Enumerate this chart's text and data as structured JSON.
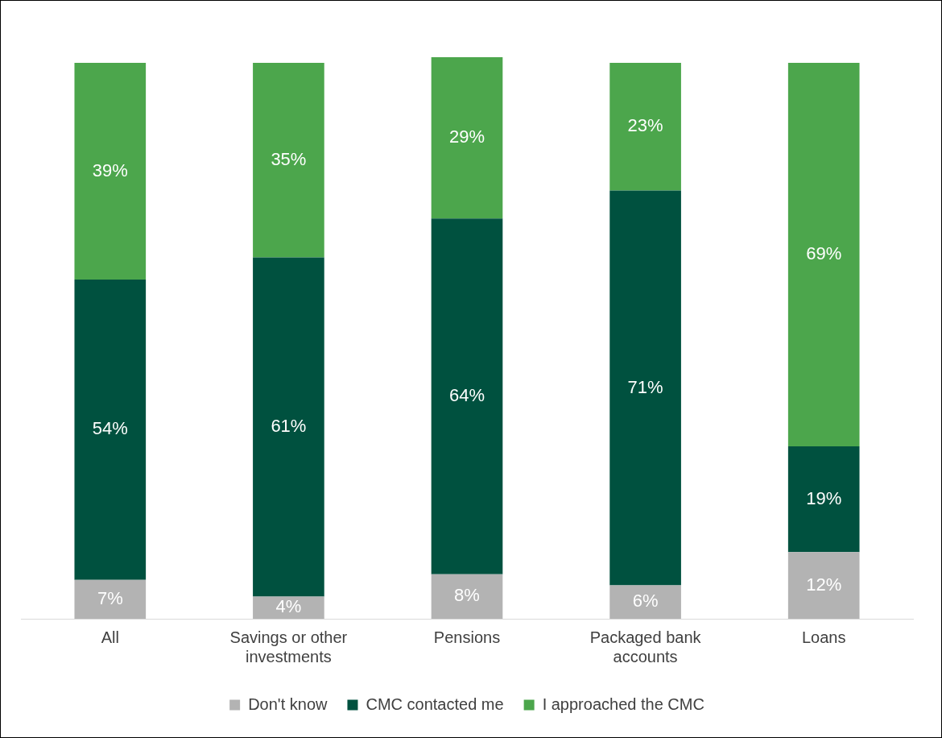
{
  "chart_data": {
    "type": "bar",
    "stacked": true,
    "legend": "bottom",
    "categories": [
      "All",
      "Savings or other investments",
      "Pensions",
      "Packaged bank accounts",
      "Loans"
    ],
    "series": [
      {
        "name": "Don't know",
        "color": "#b3b3b3",
        "values": [
          7,
          4,
          8,
          6,
          12
        ],
        "value_labels": [
          "7%",
          "4%",
          "8%",
          "6%",
          "12%"
        ]
      },
      {
        "name": "CMC contacted me",
        "color": "#00513f",
        "values": [
          54,
          61,
          64,
          71,
          19
        ],
        "value_labels": [
          "54%",
          "61%",
          "64%",
          "71%",
          "19%"
        ]
      },
      {
        "name": "I approached the CMC",
        "color": "#4ca64c",
        "values": [
          39,
          35,
          29,
          23,
          69
        ],
        "value_labels": [
          "39%",
          "35%",
          "29%",
          "23%",
          "69%"
        ]
      }
    ]
  }
}
